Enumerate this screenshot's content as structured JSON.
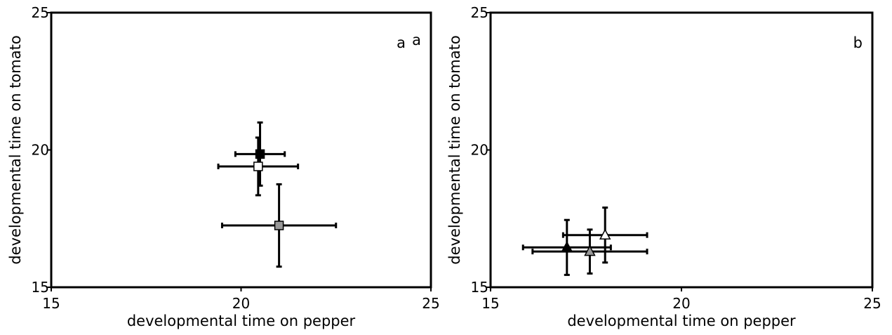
{
  "chart_data": [
    {
      "type": "scatter",
      "panel_label": "a",
      "panel_label_extra": "a",
      "xlabel": "developmental time on pepper",
      "ylabel": "developmental time on tomato",
      "xlim": [
        15,
        25
      ],
      "ylim": [
        15,
        25
      ],
      "xticks": [
        "15",
        "20",
        "25"
      ],
      "yticks": [
        "15",
        "20",
        "25"
      ],
      "grid": false,
      "points": [
        {
          "x": 20.5,
          "y": 19.85,
          "xerr": 0.65,
          "yerr": 1.15,
          "marker": "square",
          "fill": "#000000"
        },
        {
          "x": 20.45,
          "y": 19.4,
          "xerr": 1.05,
          "yerr": 1.05,
          "marker": "square",
          "fill": "#ffffff"
        },
        {
          "x": 21.0,
          "y": 17.25,
          "xerr": 1.5,
          "yerr": 1.5,
          "marker": "square",
          "fill": "#999999"
        }
      ]
    },
    {
      "type": "scatter",
      "panel_label": "b",
      "xlabel": "developmental time on pepper",
      "ylabel": "developmental time on tomato",
      "xlim": [
        15,
        25
      ],
      "ylim": [
        15,
        25
      ],
      "xticks": [
        "15",
        "20",
        "25"
      ],
      "yticks": [
        "15",
        "20",
        "25"
      ],
      "grid": false,
      "points": [
        {
          "x": 18.0,
          "y": 16.9,
          "xerr": 1.1,
          "yerr": 1.0,
          "marker": "triangle",
          "fill": "#ffffff"
        },
        {
          "x": 17.0,
          "y": 16.45,
          "xerr": 1.15,
          "yerr": 1.0,
          "marker": "triangle",
          "fill": "#000000"
        },
        {
          "x": 17.6,
          "y": 16.3,
          "xerr": 1.5,
          "yerr": 0.8,
          "marker": "triangle",
          "fill": "#999999"
        }
      ]
    }
  ]
}
